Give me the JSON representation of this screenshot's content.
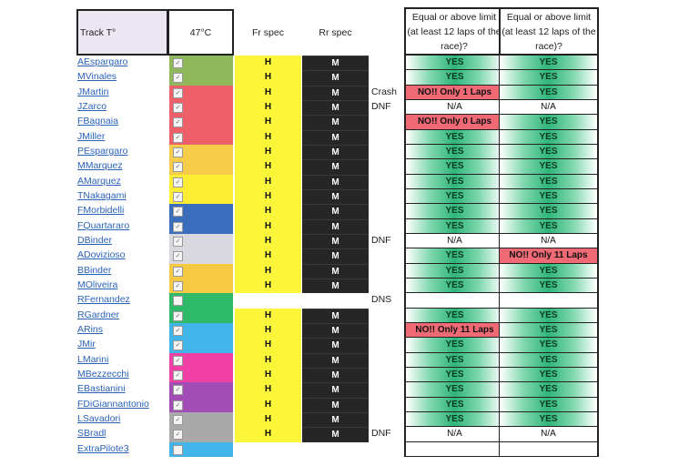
{
  "header": {
    "track": "Track T°",
    "temperature": "47°C",
    "front_spec": "Fr spec",
    "rear_spec": "Rr spec",
    "check1": "Equal or above limit (at least 12 laps of the race)?",
    "check2": "Equal or above limit (at least 12 laps of the race)?"
  },
  "rows": [
    {
      "name": "AEspargaro",
      "color": "#8fb85a",
      "checked": true,
      "fr": "H",
      "rr": "M",
      "note": "",
      "res1": "YES",
      "res2": "YES"
    },
    {
      "name": "MVinales",
      "color": "#8fb85a",
      "checked": true,
      "fr": "H",
      "rr": "M",
      "note": "",
      "res1": "YES",
      "res2": "YES"
    },
    {
      "name": "JMartin",
      "color": "#ef5f6a",
      "checked": true,
      "fr": "H",
      "rr": "M",
      "note": "Crash",
      "res1": "NO!! Only 1 Laps",
      "res2": "YES"
    },
    {
      "name": "JZarco",
      "color": "#ef5f6a",
      "checked": true,
      "fr": "H",
      "rr": "M",
      "note": "DNF",
      "res1": "N/A",
      "res2": "N/A"
    },
    {
      "name": "FBagnaia",
      "color": "#ef5f6a",
      "checked": true,
      "fr": "H",
      "rr": "M",
      "note": "",
      "res1": "NO!! Only 0 Laps",
      "res2": "YES"
    },
    {
      "name": "JMiller",
      "color": "#ef5f6a",
      "checked": true,
      "fr": "H",
      "rr": "M",
      "note": "",
      "res1": "YES",
      "res2": "YES"
    },
    {
      "name": "PEspargaro",
      "color": "#f6cc48",
      "checked": true,
      "fr": "H",
      "rr": "M",
      "note": "",
      "res1": "YES",
      "res2": "YES"
    },
    {
      "name": "MMarquez",
      "color": "#f6cc48",
      "checked": true,
      "fr": "H",
      "rr": "M",
      "note": "",
      "res1": "YES",
      "res2": "YES"
    },
    {
      "name": "AMarquez",
      "color": "#fbee32",
      "checked": true,
      "fr": "H",
      "rr": "M",
      "note": "",
      "res1": "YES",
      "res2": "YES"
    },
    {
      "name": "TNakagami",
      "color": "#fbee32",
      "checked": true,
      "fr": "H",
      "rr": "M",
      "note": "",
      "res1": "YES",
      "res2": "YES"
    },
    {
      "name": "FMorbidelli",
      "color": "#3b6dbd",
      "checked": true,
      "fr": "H",
      "rr": "M",
      "note": "",
      "res1": "YES",
      "res2": "YES"
    },
    {
      "name": "FQuartararo",
      "color": "#3b6dbd",
      "checked": true,
      "fr": "H",
      "rr": "M",
      "note": "",
      "res1": "YES",
      "res2": "YES"
    },
    {
      "name": "DBinder",
      "color": "#d9d8de",
      "checked": true,
      "fr": "H",
      "rr": "M",
      "note": "DNF",
      "res1": "N/A",
      "res2": "N/A"
    },
    {
      "name": "ADovizioso",
      "color": "#d9d8de",
      "checked": true,
      "fr": "H",
      "rr": "M",
      "note": "",
      "res1": "YES",
      "res2": "NO!! Only 11 Laps"
    },
    {
      "name": "BBinder",
      "color": "#f6c942",
      "checked": true,
      "fr": "H",
      "rr": "M",
      "note": "",
      "res1": "YES",
      "res2": "YES"
    },
    {
      "name": "MOliveira",
      "color": "#f6c942",
      "checked": true,
      "fr": "H",
      "rr": "M",
      "note": "",
      "res1": "YES",
      "res2": "YES"
    },
    {
      "name": "RFernandez",
      "color": "#2fba6a",
      "checked": false,
      "fr": "",
      "rr": "",
      "note": "DNS",
      "res1": "",
      "res2": ""
    },
    {
      "name": "RGardner",
      "color": "#2fba6a",
      "checked": true,
      "fr": "H",
      "rr": "M",
      "note": "",
      "res1": "YES",
      "res2": "YES"
    },
    {
      "name": "ARins",
      "color": "#41b4ea",
      "checked": true,
      "fr": "H",
      "rr": "M",
      "note": "",
      "res1": "NO!! Only 11 Laps",
      "res2": "YES"
    },
    {
      "name": "JMir",
      "color": "#41b4ea",
      "checked": true,
      "fr": "H",
      "rr": "M",
      "note": "",
      "res1": "YES",
      "res2": "YES"
    },
    {
      "name": "LMarini",
      "color": "#f040a5",
      "checked": true,
      "fr": "H",
      "rr": "M",
      "note": "",
      "res1": "YES",
      "res2": "YES"
    },
    {
      "name": "MBezzecchi",
      "color": "#f040a5",
      "checked": true,
      "fr": "H",
      "rr": "M",
      "note": "",
      "res1": "YES",
      "res2": "YES"
    },
    {
      "name": "EBastianini",
      "color": "#a24cb5",
      "checked": true,
      "fr": "H",
      "rr": "M",
      "note": "",
      "res1": "YES",
      "res2": "YES"
    },
    {
      "name": "FDiGiannantonio",
      "color": "#a24cb5",
      "checked": true,
      "fr": "H",
      "rr": "M",
      "note": "",
      "res1": "YES",
      "res2": "YES"
    },
    {
      "name": "LSavadori",
      "color": "#a9a9a9",
      "checked": true,
      "fr": "H",
      "rr": "M",
      "note": "",
      "res1": "YES",
      "res2": "YES"
    },
    {
      "name": "SBradl",
      "color": "#a9a9a9",
      "checked": true,
      "fr": "H",
      "rr": "M",
      "note": "DNF",
      "res1": "N/A",
      "res2": "N/A"
    },
    {
      "name": "ExtraPilote3",
      "color": "#41b4ea",
      "checked": false,
      "fr": "",
      "rr": "",
      "note": "",
      "res1": "",
      "res2": ""
    }
  ]
}
